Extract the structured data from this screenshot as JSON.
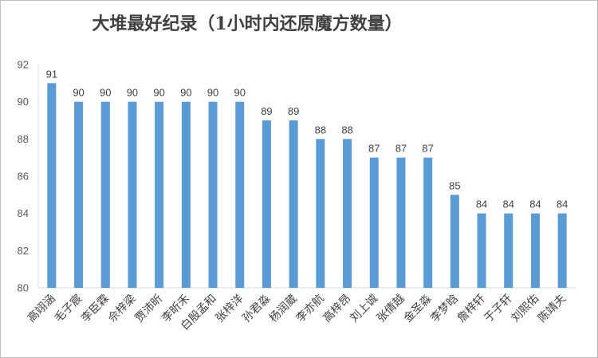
{
  "chart_data": {
    "type": "bar",
    "title": "大堆最好纪录（1小时内还原魔方数量）",
    "xlabel": "",
    "ylabel": "",
    "ylim": [
      80,
      92
    ],
    "yticks": [
      80,
      82,
      84,
      86,
      88,
      90,
      92
    ],
    "grid": false,
    "legend": "none",
    "bar_color": "#5b9bd5",
    "categories": [
      "高翊涵",
      "毛子宸",
      "李臣霖",
      "佘梓梁",
      "贾沛昕",
      "李昕禾",
      "白殷孟和",
      "张梓洋",
      "孙君淼",
      "杨润葳",
      "李亦航",
      "高梓昂",
      "刘上诚",
      "张倩越",
      "金圣淼",
      "李梦晗",
      "詹梓轩",
      "于子轩",
      "刘熙佑",
      "陈靖夫"
    ],
    "values": [
      91,
      90,
      90,
      90,
      90,
      90,
      90,
      90,
      89,
      89,
      88,
      88,
      87,
      87,
      87,
      85,
      84,
      84,
      84,
      84
    ]
  }
}
